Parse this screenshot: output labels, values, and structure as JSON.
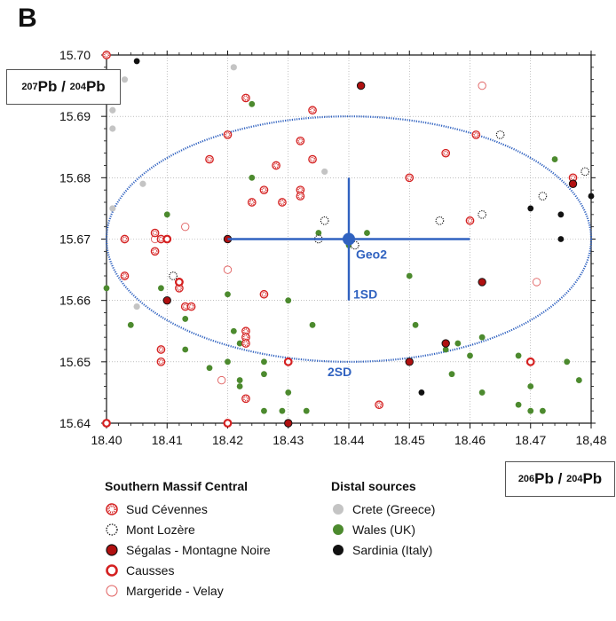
{
  "panel_label": "B",
  "chart_data": {
    "type": "scatter",
    "xlabel": {
      "mass_a": "206",
      "sym_a": "Pb",
      "mass_b": "204",
      "sym_b": "Pb"
    },
    "ylabel": {
      "mass_a": "207",
      "sym_a": "Pb",
      "mass_b": "204",
      "sym_b": "Pb"
    },
    "xlim": [
      18.4,
      18.48
    ],
    "ylim": [
      15.64,
      15.7
    ],
    "x_ticks": [
      "18.40",
      "18.41",
      "18.42",
      "18.43",
      "18.44",
      "18.45",
      "18.46",
      "18.47",
      "18,48"
    ],
    "y_ticks": [
      "15.64",
      "15.65",
      "15.66",
      "15.67",
      "15.68",
      "15.69",
      "15.70"
    ],
    "grid": "dotted",
    "colors": {
      "red": "#d42020",
      "green": "#4c8a2e",
      "grey": "#c4c4c4",
      "black": "#111111",
      "blue": "#3062c0"
    },
    "reference": {
      "label": "Geo2",
      "center": [
        18.44,
        15.67
      ],
      "sd1": {
        "label": "1SD",
        "x_range": [
          18.42,
          18.46
        ],
        "y_range": [
          15.66,
          15.68
        ]
      },
      "sd2": {
        "label": "2SD",
        "x_range": [
          18.4,
          18.48
        ],
        "y_range": [
          15.65,
          15.69
        ]
      }
    },
    "legend_groups": [
      {
        "title": "Southern Massif Central",
        "entries": [
          "Sud Cévennes",
          "Mont Lozère",
          "Ségalas - Montagne Noire",
          "Causses",
          "Margeride - Velay"
        ]
      },
      {
        "title": "Distal sources",
        "entries": [
          "Crete (Greece)",
          "Wales (UK)",
          "Sardinia (Italy)"
        ]
      }
    ],
    "series": [
      {
        "name": "Sud Cévennes",
        "marker": "red-dotted-ring",
        "points": [
          [
            18.4,
            15.7
          ],
          [
            18.423,
            15.693
          ],
          [
            18.434,
            15.691
          ],
          [
            18.432,
            15.686
          ],
          [
            18.42,
            15.687
          ],
          [
            18.417,
            15.683
          ],
          [
            18.428,
            15.682
          ],
          [
            18.434,
            15.683
          ],
          [
            18.424,
            15.676
          ],
          [
            18.426,
            15.678
          ],
          [
            18.429,
            15.676
          ],
          [
            18.432,
            15.678
          ],
          [
            18.432,
            15.677
          ],
          [
            18.44,
            15.67
          ],
          [
            18.45,
            15.68
          ],
          [
            18.456,
            15.684
          ],
          [
            18.461,
            15.687
          ],
          [
            18.46,
            15.673
          ],
          [
            18.477,
            15.68
          ],
          [
            18.403,
            15.67
          ],
          [
            18.408,
            15.671
          ],
          [
            18.408,
            15.668
          ],
          [
            18.409,
            15.67
          ],
          [
            18.412,
            15.663
          ],
          [
            18.412,
            15.662
          ],
          [
            18.403,
            15.664
          ],
          [
            18.413,
            15.659
          ],
          [
            18.414,
            15.659
          ],
          [
            18.423,
            15.655
          ],
          [
            18.423,
            15.654
          ],
          [
            18.423,
            15.653
          ],
          [
            18.426,
            15.661
          ],
          [
            18.409,
            15.652
          ],
          [
            18.409,
            15.65
          ],
          [
            18.423,
            15.644
          ],
          [
            18.445,
            15.643
          ]
        ]
      },
      {
        "name": "Mont Lozère",
        "marker": "black-dotted-ring",
        "points": [
          [
            18.411,
            15.664
          ],
          [
            18.436,
            15.673
          ],
          [
            18.435,
            15.67
          ],
          [
            18.441,
            15.669
          ],
          [
            18.455,
            15.673
          ],
          [
            18.462,
            15.674
          ],
          [
            18.465,
            15.687
          ],
          [
            18.472,
            15.677
          ],
          [
            18.479,
            15.681
          ]
        ]
      },
      {
        "name": "Ségalas - Montagne Noire",
        "marker": "red-filled",
        "points": [
          [
            18.442,
            15.695
          ],
          [
            18.42,
            15.67
          ],
          [
            18.41,
            15.66
          ],
          [
            18.462,
            15.663
          ],
          [
            18.456,
            15.653
          ],
          [
            18.45,
            15.65
          ],
          [
            18.477,
            15.679
          ],
          [
            18.43,
            15.64
          ]
        ]
      },
      {
        "name": "Causses",
        "marker": "red-ring",
        "points": [
          [
            18.41,
            15.67
          ],
          [
            18.412,
            15.663
          ],
          [
            18.43,
            15.65
          ],
          [
            18.47,
            15.65
          ],
          [
            18.4,
            15.64
          ],
          [
            18.42,
            15.64
          ]
        ]
      },
      {
        "name": "Margeride - Velay",
        "marker": "red-open",
        "points": [
          [
            18.462,
            15.695
          ],
          [
            18.42,
            15.665
          ],
          [
            18.413,
            15.672
          ],
          [
            18.408,
            15.67
          ],
          [
            18.419,
            15.647
          ],
          [
            18.471,
            15.663
          ]
        ]
      },
      {
        "name": "Crete (Greece)",
        "marker": "grey-filled",
        "points": [
          [
            18.421,
            15.698
          ],
          [
            18.403,
            15.696
          ],
          [
            18.401,
            15.691
          ],
          [
            18.401,
            15.688
          ],
          [
            18.406,
            15.679
          ],
          [
            18.401,
            15.675
          ],
          [
            18.405,
            15.659
          ],
          [
            18.436,
            15.681
          ]
        ]
      },
      {
        "name": "Wales (UK)",
        "marker": "green-filled",
        "points": [
          [
            18.41,
            15.674
          ],
          [
            18.424,
            15.692
          ],
          [
            18.424,
            15.68
          ],
          [
            18.4,
            15.662
          ],
          [
            18.404,
            15.656
          ],
          [
            18.409,
            15.662
          ],
          [
            18.413,
            15.657
          ],
          [
            18.413,
            15.652
          ],
          [
            18.417,
            15.649
          ],
          [
            18.42,
            15.661
          ],
          [
            18.421,
            15.655
          ],
          [
            18.422,
            15.653
          ],
          [
            18.42,
            15.65
          ],
          [
            18.422,
            15.647
          ],
          [
            18.422,
            15.646
          ],
          [
            18.426,
            15.65
          ],
          [
            18.426,
            15.648
          ],
          [
            18.43,
            15.66
          ],
          [
            18.43,
            15.645
          ],
          [
            18.434,
            15.656
          ],
          [
            18.435,
            15.671
          ],
          [
            18.426,
            15.642
          ],
          [
            18.429,
            15.642
          ],
          [
            18.433,
            15.642
          ],
          [
            18.44,
            15.669
          ],
          [
            18.443,
            15.671
          ],
          [
            18.45,
            15.664
          ],
          [
            18.451,
            15.656
          ],
          [
            18.456,
            15.652
          ],
          [
            18.457,
            15.648
          ],
          [
            18.458,
            15.653
          ],
          [
            18.46,
            15.651
          ],
          [
            18.462,
            15.654
          ],
          [
            18.462,
            15.645
          ],
          [
            18.468,
            15.651
          ],
          [
            18.468,
            15.643
          ],
          [
            18.47,
            15.646
          ],
          [
            18.47,
            15.642
          ],
          [
            18.472,
            15.642
          ],
          [
            18.474,
            15.683
          ],
          [
            18.476,
            15.65
          ],
          [
            18.478,
            15.647
          ]
        ]
      },
      {
        "name": "Sardinia (Italy)",
        "marker": "black-filled",
        "points": [
          [
            18.405,
            15.699
          ],
          [
            18.47,
            15.675
          ],
          [
            18.475,
            15.674
          ],
          [
            18.475,
            15.67
          ],
          [
            18.48,
            15.677
          ],
          [
            18.452,
            15.645
          ]
        ]
      }
    ]
  }
}
